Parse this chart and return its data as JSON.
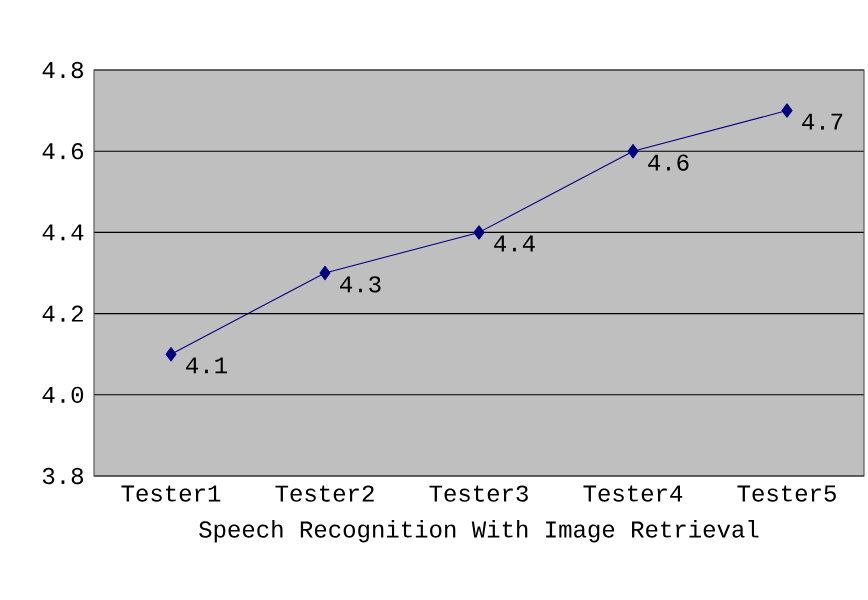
{
  "chart_data": {
    "type": "line",
    "xlabel": "Speech Recognition With Image Retrieval",
    "categories": [
      "Tester1",
      "Tester2",
      "Tester3",
      "Tester4",
      "Tester5"
    ],
    "series": [
      {
        "color": "#000080",
        "values": [
          4.1,
          4.3,
          4.4,
          4.6,
          4.7
        ]
      }
    ],
    "ylim": [
      3.8,
      4.8
    ],
    "yticks": [
      3.8,
      {
        "value": 4.0,
        "label": "4.0"
      },
      4.2,
      4.4,
      4.6,
      4.8
    ],
    "grid": "y",
    "marker": "diamond",
    "data_labels": true
  }
}
